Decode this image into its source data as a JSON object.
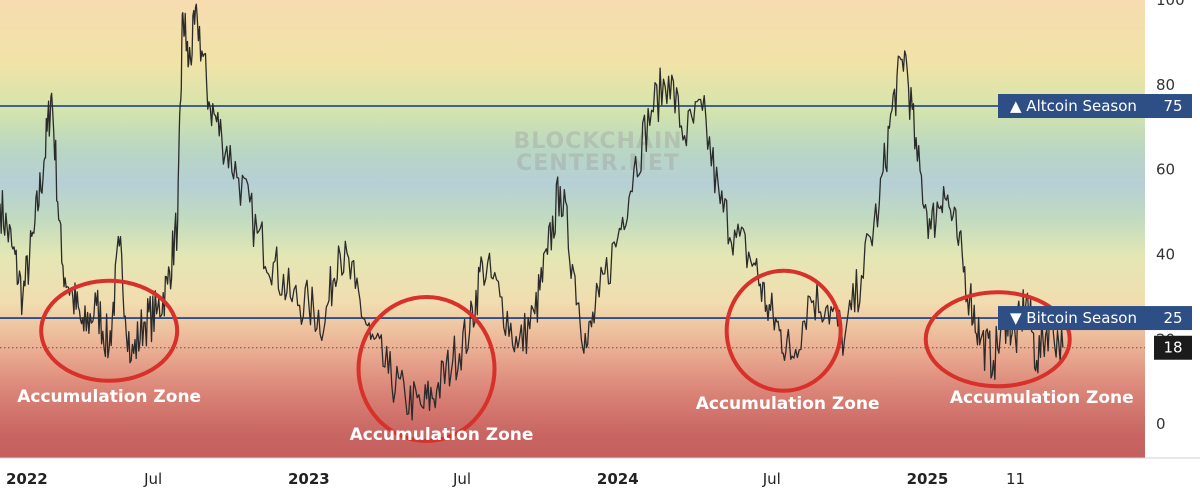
{
  "chart_data": {
    "type": "line",
    "watermark": [
      "BLOCKCHAIN",
      "CENTER.NET"
    ],
    "y_axis": {
      "range": [
        -8,
        100
      ],
      "ticks": [
        "0",
        "20",
        "40",
        "60",
        "80",
        "100"
      ],
      "tick_values": [
        0,
        20,
        40,
        60,
        80,
        100
      ]
    },
    "x_axis": {
      "range": [
        "2022-01-01",
        "2025-09-15"
      ],
      "ticks": [
        {
          "label": "2022",
          "date": "2022-01-01",
          "bold": true
        },
        {
          "label": "Jul",
          "date": "2022-07-01",
          "bold": false
        },
        {
          "label": "2023",
          "date": "2023-01-01",
          "bold": true
        },
        {
          "label": "Jul",
          "date": "2023-07-01",
          "bold": false
        },
        {
          "label": "2024",
          "date": "2024-01-01",
          "bold": true
        },
        {
          "label": "Jul",
          "date": "2024-07-01",
          "bold": false
        },
        {
          "label": "2025",
          "date": "2025-01-01",
          "bold": true
        },
        {
          "label": "11",
          "date": "2025-04-15",
          "bold": false
        }
      ]
    },
    "reference_lines": [
      {
        "label": "▲ Altcoin Season",
        "value": 75,
        "value_label": "75"
      },
      {
        "label": "▼ Bitcoin Season",
        "value": 25,
        "value_label": "25"
      }
    ],
    "current_value": {
      "value": 18,
      "label": "18"
    },
    "annotations": [
      {
        "label": "Accumulation Zone",
        "center_date": "2022-05-10",
        "center_value": 22
      },
      {
        "label": "Accumulation Zone",
        "center_date": "2023-05-20",
        "center_value": 13
      },
      {
        "label": "Accumulation Zone",
        "center_date": "2024-07-15",
        "center_value": 22
      },
      {
        "label": "Accumulation Zone",
        "center_date": "2025-03-25",
        "center_value": 20
      }
    ],
    "series": [
      {
        "points": [
          [
            "2022-01-01",
            52
          ],
          [
            "2022-01-15",
            42
          ],
          [
            "2022-01-28",
            30
          ],
          [
            "2022-02-10",
            45
          ],
          [
            "2022-02-22",
            62
          ],
          [
            "2022-03-03",
            78
          ],
          [
            "2022-03-15",
            38
          ],
          [
            "2022-03-28",
            30
          ],
          [
            "2022-04-10",
            22
          ],
          [
            "2022-04-25",
            28
          ],
          [
            "2022-05-10",
            18
          ],
          [
            "2022-05-22",
            42
          ],
          [
            "2022-06-05",
            15
          ],
          [
            "2022-06-20",
            24
          ],
          [
            "2022-07-05",
            26
          ],
          [
            "2022-07-18",
            33
          ],
          [
            "2022-07-30",
            48
          ],
          [
            "2022-08-05",
            97
          ],
          [
            "2022-08-12",
            85
          ],
          [
            "2022-08-22",
            96
          ],
          [
            "2022-09-05",
            76
          ],
          [
            "2022-09-20",
            68
          ],
          [
            "2022-10-10",
            58
          ],
          [
            "2022-11-01",
            45
          ],
          [
            "2022-11-20",
            38
          ],
          [
            "2022-12-10",
            30
          ],
          [
            "2023-01-01",
            28
          ],
          [
            "2023-01-20",
            24
          ],
          [
            "2023-02-05",
            42
          ],
          [
            "2023-02-25",
            32
          ],
          [
            "2023-03-15",
            20
          ],
          [
            "2023-04-05",
            12
          ],
          [
            "2023-04-25",
            6
          ],
          [
            "2023-05-15",
            4
          ],
          [
            "2023-06-01",
            8
          ],
          [
            "2023-06-20",
            15
          ],
          [
            "2023-07-10",
            22
          ],
          [
            "2023-07-25",
            38
          ],
          [
            "2023-08-15",
            30
          ],
          [
            "2023-09-05",
            18
          ],
          [
            "2023-09-25",
            26
          ],
          [
            "2023-10-10",
            40
          ],
          [
            "2023-10-25",
            56
          ],
          [
            "2023-11-10",
            36
          ],
          [
            "2023-11-25",
            18
          ],
          [
            "2023-12-10",
            30
          ],
          [
            "2024-01-01",
            44
          ],
          [
            "2024-01-20",
            60
          ],
          [
            "2024-02-10",
            74
          ],
          [
            "2024-03-01",
            82
          ],
          [
            "2024-03-20",
            68
          ],
          [
            "2024-04-10",
            74
          ],
          [
            "2024-05-01",
            52
          ],
          [
            "2024-05-20",
            44
          ],
          [
            "2024-06-10",
            38
          ],
          [
            "2024-06-25",
            28
          ],
          [
            "2024-07-10",
            22
          ],
          [
            "2024-07-25",
            16
          ],
          [
            "2024-08-15",
            30
          ],
          [
            "2024-09-05",
            28
          ],
          [
            "2024-09-25",
            20
          ],
          [
            "2024-10-15",
            35
          ],
          [
            "2024-11-05",
            52
          ],
          [
            "2024-11-20",
            74
          ],
          [
            "2024-12-05",
            88
          ],
          [
            "2024-12-20",
            62
          ],
          [
            "2025-01-05",
            46
          ],
          [
            "2025-01-20",
            56
          ],
          [
            "2025-02-05",
            44
          ],
          [
            "2025-02-20",
            30
          ],
          [
            "2025-03-05",
            20
          ],
          [
            "2025-03-20",
            15
          ],
          [
            "2025-04-05",
            26
          ],
          [
            "2025-04-15",
            20
          ],
          [
            "2025-04-28",
            30
          ],
          [
            "2025-05-10",
            15
          ],
          [
            "2025-05-25",
            24
          ],
          [
            "2025-06-10",
            18
          ]
        ]
      }
    ]
  }
}
